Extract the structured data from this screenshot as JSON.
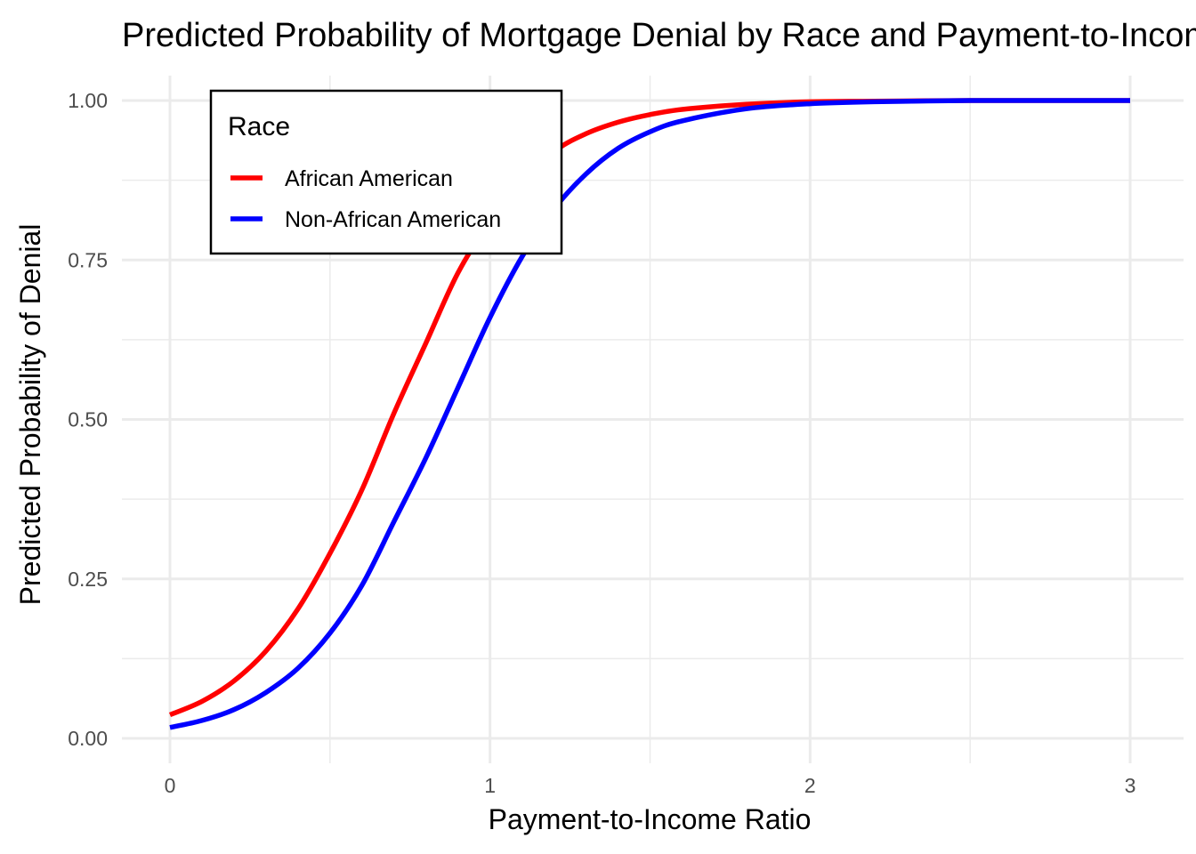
{
  "chart_data": {
    "type": "line",
    "title": "Predicted Probability of Mortgage Denial by Race and Payment-to-Income Ratio",
    "xlabel": "Payment-to-Income Ratio",
    "ylabel": "Predicted Probability of Denial",
    "xlim": [
      0,
      3
    ],
    "ylim": [
      0,
      1
    ],
    "x_ticks": [
      0,
      1,
      2,
      3
    ],
    "x_tick_labels": [
      "0",
      "1",
      "2",
      "3"
    ],
    "y_ticks": [
      0,
      0.25,
      0.5,
      0.75,
      1.0
    ],
    "y_tick_labels": [
      "0.00",
      "0.25",
      "0.50",
      "0.75",
      "1.00"
    ],
    "grid": true,
    "legend": {
      "title": "Race",
      "position": "top-left",
      "entries": [
        "African American",
        "Non-African American"
      ]
    },
    "x": [
      0,
      0.1,
      0.2,
      0.3,
      0.4,
      0.5,
      0.6,
      0.7,
      0.8,
      0.9,
      1.0,
      1.1,
      1.2,
      1.3,
      1.4,
      1.5,
      1.6,
      1.8,
      2.0,
      2.2,
      2.5,
      2.75,
      3.0
    ],
    "series": [
      {
        "name": "African American",
        "color": "#ff0000",
        "values": [
          0.037,
          0.058,
          0.09,
          0.137,
          0.203,
          0.29,
          0.39,
          0.51,
          0.62,
          0.73,
          0.81,
          0.87,
          0.92,
          0.948,
          0.966,
          0.978,
          0.986,
          0.994,
          0.998,
          0.999,
          1.0,
          1.0,
          1.0
        ]
      },
      {
        "name": "Non-African American",
        "color": "#0000ff",
        "values": [
          0.017,
          0.028,
          0.045,
          0.072,
          0.11,
          0.165,
          0.24,
          0.34,
          0.44,
          0.55,
          0.66,
          0.755,
          0.83,
          0.885,
          0.925,
          0.951,
          0.968,
          0.987,
          0.995,
          0.998,
          1.0,
          1.0,
          1.0
        ]
      }
    ]
  }
}
